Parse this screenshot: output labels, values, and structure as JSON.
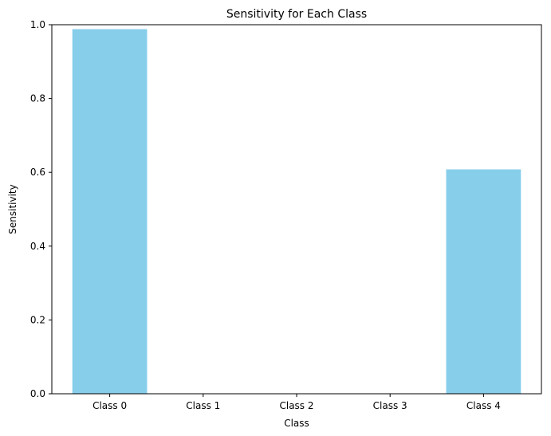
{
  "chart_data": {
    "type": "bar",
    "title": "Sensitivity for Each Class",
    "xlabel": "Class",
    "ylabel": "Sensitivity",
    "categories": [
      "Class 0",
      "Class 1",
      "Class 2",
      "Class 3",
      "Class 4"
    ],
    "values": [
      0.988,
      0.0,
      0.0,
      0.0,
      0.608
    ],
    "ylim": [
      0,
      1.0
    ],
    "yticks": [
      "0.0",
      "0.2",
      "0.4",
      "0.6",
      "0.8",
      "1.0"
    ],
    "grid": false,
    "bar_color": "#87ceeb"
  }
}
